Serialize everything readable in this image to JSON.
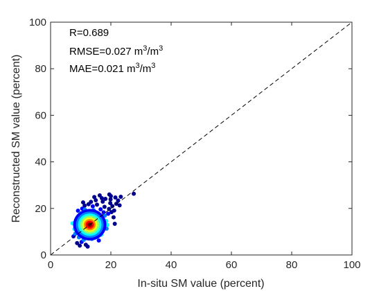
{
  "chart_data": {
    "type": "scatter",
    "title": "",
    "xlabel": "In-situ SM value (percent)",
    "ylabel": "Reconstructed SM value (percent)",
    "xlim": [
      0,
      100
    ],
    "ylim": [
      0,
      100
    ],
    "xticks": [
      0,
      20,
      40,
      60,
      80,
      100
    ],
    "yticks": [
      0,
      20,
      40,
      60,
      80,
      100
    ],
    "grid": false,
    "reference_line": {
      "type": "1:1",
      "style": "dashed",
      "color": "#000000"
    },
    "annotations": [
      {
        "label": "R=0.689"
      },
      {
        "label": "RMSE=0.027 m",
        "sup1": "3",
        "mid": "/m",
        "sup2": "3"
      },
      {
        "label": "MAE=0.021 m",
        "sup1": "3",
        "mid": "/m",
        "sup2": "3"
      }
    ],
    "colormap": [
      "#00008f",
      "#0000ff",
      "#0080ff",
      "#00ffff",
      "#80ff80",
      "#ffff00",
      "#ff8000",
      "#ff0000",
      "#800000"
    ],
    "density_center": [
      13,
      13
    ],
    "points": [
      [
        11.2,
        12.8
      ],
      [
        12.5,
        14.1
      ],
      [
        13.8,
        13.2
      ],
      [
        14.6,
        15.0
      ],
      [
        10.4,
        11.6
      ],
      [
        12.9,
        12.2
      ],
      [
        13.5,
        14.8
      ],
      [
        15.2,
        13.6
      ],
      [
        11.8,
        13.9
      ],
      [
        14.1,
        12.5
      ],
      [
        12.2,
        15.3
      ],
      [
        10.9,
        13.4
      ],
      [
        13.1,
        11.1
      ],
      [
        15.8,
        15.7
      ],
      [
        11.5,
        10.7
      ],
      [
        14.9,
        14.0
      ],
      [
        12.7,
        13.5
      ],
      [
        13.9,
        12.9
      ],
      [
        10.2,
        14.6
      ],
      [
        16.4,
        14.3
      ],
      [
        9.8,
        11.9
      ],
      [
        12.0,
        16.2
      ],
      [
        14.4,
        16.8
      ],
      [
        11.1,
        9.8
      ],
      [
        15.5,
        12.1
      ],
      [
        13.3,
        17.1
      ],
      [
        9.5,
        13.0
      ],
      [
        16.9,
        16.4
      ],
      [
        12.4,
        10.3
      ],
      [
        10.7,
        15.8
      ],
      [
        17.2,
        14.9
      ],
      [
        14.7,
        10.9
      ],
      [
        8.9,
        10.2
      ],
      [
        11.9,
        17.5
      ],
      [
        15.1,
        18.0
      ],
      [
        13.6,
        9.5
      ],
      [
        18.0,
        16.9
      ],
      [
        9.2,
        15.1
      ],
      [
        16.1,
        11.7
      ],
      [
        12.8,
        18.6
      ],
      [
        10.1,
        8.9
      ],
      [
        17.6,
        18.3
      ],
      [
        14.3,
        19.2
      ],
      [
        8.6,
        12.4
      ],
      [
        18.5,
        14.6
      ],
      [
        11.4,
        19.5
      ],
      [
        15.9,
        9.9
      ],
      [
        9.9,
        17.8
      ],
      [
        19.1,
        17.7
      ],
      [
        13.0,
        8.2
      ],
      [
        16.6,
        19.6
      ],
      [
        8.2,
        9.1
      ],
      [
        19.4,
        19.8
      ],
      [
        12.1,
        7.4
      ],
      [
        17.9,
        20.7
      ],
      [
        10.5,
        19.9
      ],
      [
        20.2,
        18.4
      ],
      [
        14.0,
        20.9
      ],
      [
        7.9,
        11.1
      ],
      [
        18.8,
        12.9
      ],
      [
        9.4,
        7.6
      ],
      [
        20.5,
        21.0
      ],
      [
        15.4,
        21.6
      ],
      [
        11.0,
        6.5
      ],
      [
        8.4,
        14.8
      ],
      [
        21.1,
        19.1
      ],
      [
        16.8,
        8.7
      ],
      [
        19.8,
        22.3
      ],
      [
        12.6,
        21.8
      ],
      [
        10.3,
        5.6
      ],
      [
        21.8,
        22.0
      ],
      [
        17.3,
        22.9
      ],
      [
        9.1,
        19.0
      ],
      [
        20.9,
        16.2
      ],
      [
        13.7,
        6.9
      ],
      [
        22.4,
        23.4
      ],
      [
        18.2,
        24.1
      ],
      [
        8.8,
        5.1
      ],
      [
        21.5,
        24.7
      ],
      [
        15.0,
        23.5
      ],
      [
        11.7,
        4.4
      ],
      [
        20.0,
        25.3
      ],
      [
        22.9,
        21.3
      ],
      [
        19.5,
        26.0
      ],
      [
        7.6,
        8.0
      ],
      [
        10.8,
        22.6
      ],
      [
        23.3,
        25.0
      ],
      [
        16.3,
        25.6
      ],
      [
        12.3,
        3.6
      ],
      [
        27.6,
        26.3
      ],
      [
        9.7,
        4.0
      ],
      [
        18.6,
        11.3
      ],
      [
        7.3,
        13.6
      ],
      [
        14.5,
        24.9
      ],
      [
        21.3,
        13.4
      ],
      [
        16.0,
        6.2
      ],
      [
        13.4,
        22.8
      ],
      [
        11.3,
        21.2
      ],
      [
        17.0,
        24.4
      ],
      [
        19.9,
        23.9
      ],
      [
        12.9,
        13.1
      ],
      [
        13.2,
        12.6
      ],
      [
        12.6,
        13.4
      ],
      [
        13.5,
        13.0
      ],
      [
        13.0,
        12.3
      ],
      [
        12.3,
        12.9
      ],
      [
        13.7,
        13.6
      ],
      [
        12.8,
        14.0
      ],
      [
        14.0,
        13.1
      ],
      [
        12.2,
        13.7
      ],
      [
        13.3,
        12.0
      ],
      [
        11.9,
        12.4
      ],
      [
        13.9,
        14.2
      ],
      [
        12.5,
        11.7
      ],
      [
        14.3,
        12.8
      ],
      [
        11.6,
        13.2
      ],
      [
        13.1,
        14.6
      ],
      [
        14.5,
        13.9
      ],
      [
        12.1,
        11.3
      ],
      [
        13.6,
        11.5
      ]
    ]
  }
}
